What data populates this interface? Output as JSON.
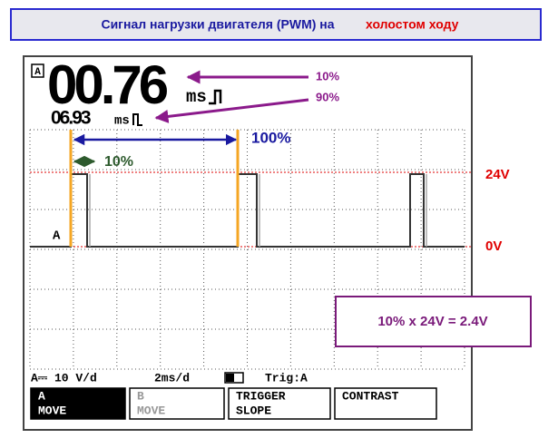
{
  "header": {
    "title": "Сигнал нагрузки двигателя (PWM) на",
    "title_highlight": "холостом ходу"
  },
  "scope": {
    "main_reading": "00.76",
    "main_unit": "ms",
    "secondary_reading": "06.93",
    "secondary_unit": "ms",
    "channel_marker": "A",
    "channel_trace_label": "A",
    "status": {
      "channel": "A⎓ 10 V/d",
      "timebase": "2ms/d",
      "trigger": "Trig:A"
    },
    "softkeys": [
      {
        "line1": "A",
        "line2": "MOVE"
      },
      {
        "line1": "B",
        "line2": "MOVE"
      },
      {
        "line1": "TRIGGER",
        "line2": "SLOPE"
      },
      {
        "line1": "CONTRAST",
        "line2": ""
      }
    ]
  },
  "annotations": {
    "pulse_width": "10%",
    "period": "90%",
    "period_span": "100%",
    "duty_span": "10%",
    "high_level": "24V",
    "low_level": "0V",
    "formula": "10% x 24V = 2.4V"
  }
}
